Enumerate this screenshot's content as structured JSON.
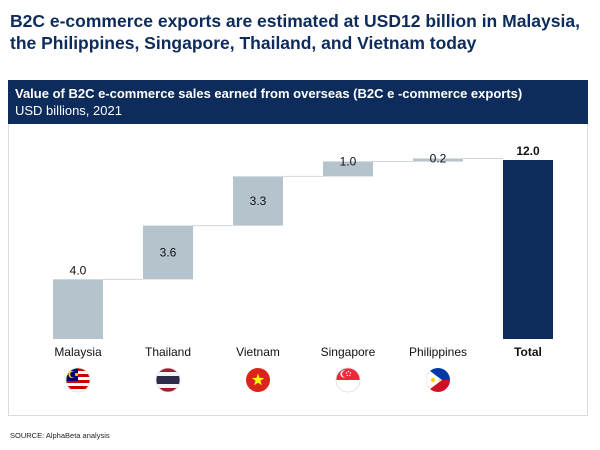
{
  "headline": "B2C e-commerce exports are estimated at USD12 billion in Malaysia, the Philippines, Singapore, Thailand, and Vietnam today",
  "source": "SOURCE: AlphaBeta analysis",
  "colors": {
    "navy": "#0d2b5b",
    "step_bar": "#b4c3cc",
    "total_bar": "#0d2b5b",
    "connector": "#cfd6db"
  },
  "chart_data": {
    "type": "bar",
    "subtype": "waterfall",
    "title": "Value of B2C e-commerce sales earned from overseas (B2C e -commerce exports)",
    "subtitle": "USD billions, 2021",
    "categories": [
      "Malaysia",
      "Thailand",
      "Vietnam",
      "Singapore",
      "Philippines",
      "Total"
    ],
    "values": [
      4.0,
      3.6,
      3.3,
      1.0,
      0.2,
      12.0
    ],
    "labels": [
      "4.0",
      "3.6",
      "3.3",
      "1.0",
      "0.2",
      "12.0"
    ],
    "is_total": [
      false,
      false,
      false,
      false,
      false,
      true
    ],
    "flag_icons": [
      "malaysia-flag-icon",
      "thailand-flag-icon",
      "vietnam-flag-icon",
      "singapore-flag-icon",
      "philippines-flag-icon",
      ""
    ],
    "ylim": [
      0,
      12.0
    ],
    "grid": false,
    "legend": "none"
  }
}
